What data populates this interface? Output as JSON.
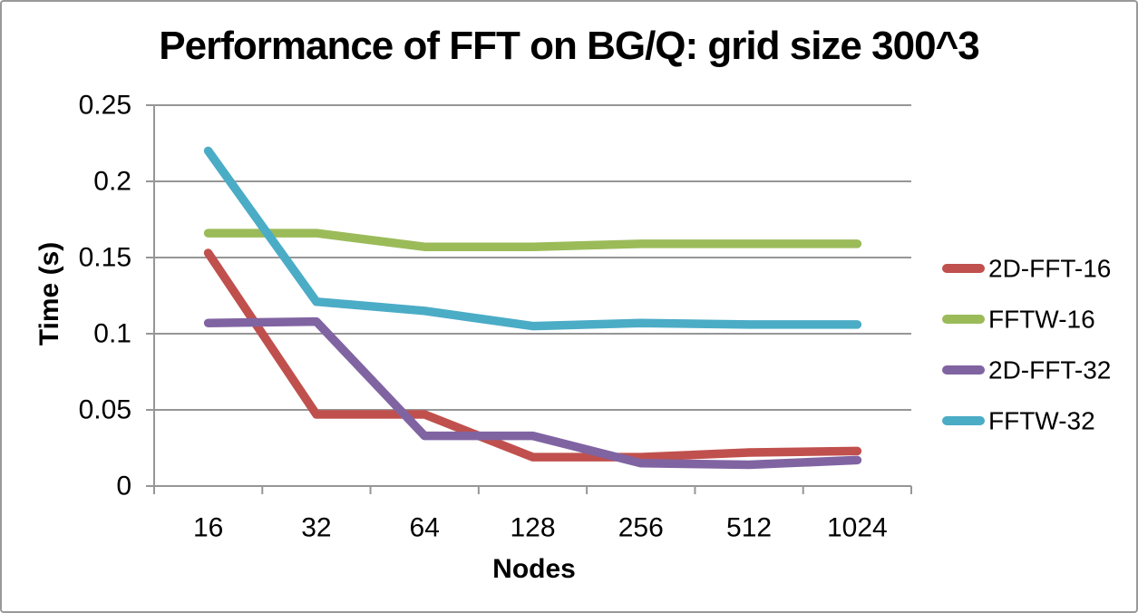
{
  "chart_data": {
    "type": "line",
    "title": "Performance of FFT on BG/Q: grid size 300^3",
    "xlabel": "Nodes",
    "ylabel": "Time (s)",
    "categories": [
      "16",
      "32",
      "64",
      "128",
      "256",
      "512",
      "1024"
    ],
    "ylim": [
      0,
      0.25
    ],
    "yticks": [
      {
        "value": 0,
        "label": "0"
      },
      {
        "value": 0.05,
        "label": "0.05"
      },
      {
        "value": 0.1,
        "label": "0.1"
      },
      {
        "value": 0.15,
        "label": "0.15"
      },
      {
        "value": 0.2,
        "label": "0.2"
      },
      {
        "value": 0.25,
        "label": "0.25"
      }
    ],
    "grid": "horizontal",
    "legend_position": "right",
    "series": [
      {
        "name": "2D-FFT-16",
        "color": "#C0504D",
        "values": [
          0.153,
          0.047,
          0.047,
          0.019,
          0.019,
          0.022,
          0.023
        ]
      },
      {
        "name": "FFTW-16",
        "color": "#9BBB59",
        "values": [
          0.166,
          0.166,
          0.157,
          0.157,
          0.159,
          0.159,
          0.159
        ]
      },
      {
        "name": "2D-FFT-32",
        "color": "#8064A2",
        "values": [
          0.107,
          0.108,
          0.033,
          0.033,
          0.015,
          0.014,
          0.017
        ]
      },
      {
        "name": "FFTW-32",
        "color": "#4BACC6",
        "values": [
          0.22,
          0.121,
          0.115,
          0.105,
          0.107,
          0.106,
          0.106
        ]
      }
    ],
    "colors": {
      "gridline": "#969696",
      "axis": "#969696",
      "text": "#000000",
      "frame_border": "#999999",
      "background": "#FFFFFF"
    }
  }
}
